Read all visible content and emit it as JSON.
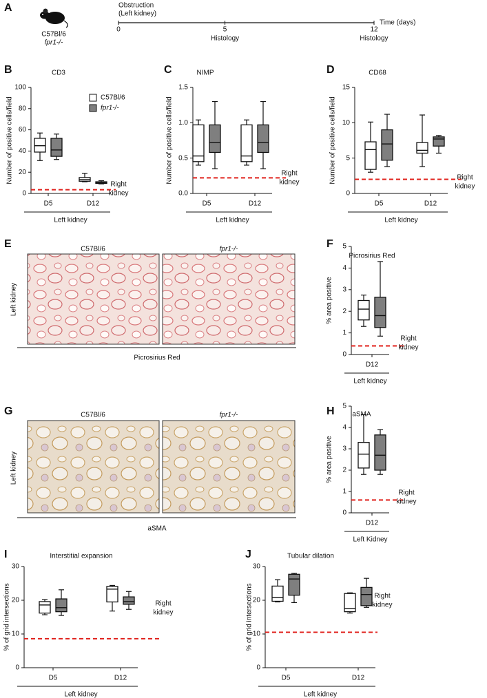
{
  "panel_letters": [
    "A",
    "B",
    "C",
    "D",
    "E",
    "F",
    "G",
    "H",
    "I",
    "J"
  ],
  "timeline": {
    "strain": "C57Bl/6",
    "genotype": "fpr1-/-",
    "event": "Obstruction",
    "event_detail": "(Left kidney)",
    "xlim": [
      0,
      12
    ],
    "ticks": [
      0,
      5,
      12
    ],
    "tick_notes": [
      null,
      "Histology",
      "Histology"
    ],
    "axis_label": "Time (days)"
  },
  "micrographs": [
    {
      "left_caption": "C57Bl/6",
      "right_caption": "fpr1-/-",
      "side_label": "Left kidney",
      "stain": "Picrosirius Red"
    },
    {
      "left_caption": "C57Bl/6",
      "right_caption": "fpr1-/-",
      "side_label": "Left kidney",
      "stain": "aSMA"
    }
  ],
  "chart_data": [
    {
      "type": "box",
      "title": "CD3",
      "y_label": "Number of positive cells/field",
      "categories": [
        "D5",
        "D12"
      ],
      "group_label": "Left kidney",
      "ylim": [
        0,
        100
      ],
      "yticks": [
        0,
        20,
        40,
        60,
        80,
        100
      ],
      "legend": true,
      "reference": {
        "value": 3.5,
        "color": "#e0201b",
        "label": [
          "Right",
          "kidney"
        ]
      },
      "series": [
        {
          "name": "C57Bl/6",
          "color": "#ffffff",
          "values": [
            {
              "min": 31,
              "q1": 39,
              "median": 45,
              "q3": 52,
              "max": 57
            },
            {
              "min": 11,
              "q1": 11.5,
              "median": 13,
              "q3": 15,
              "max": 19
            }
          ]
        },
        {
          "name": "fpr1-/-",
          "color": "#7f7f7f",
          "values": [
            {
              "min": 32,
              "q1": 35,
              "median": 41,
              "q3": 52,
              "max": 56
            },
            {
              "min": 9,
              "q1": 9.5,
              "median": 10,
              "q3": 11,
              "max": 12
            }
          ]
        }
      ]
    },
    {
      "type": "box",
      "title": "NIMP",
      "y_label": "Number of positive cells/field",
      "categories": [
        "D5",
        "D12"
      ],
      "group_label": "Left kidney",
      "ylim": [
        0,
        1.5
      ],
      "yticks": [
        {
          "value": 0,
          "label": "0.0"
        },
        0.5,
        {
          "value": 1,
          "label": "1.0"
        },
        1.5
      ],
      "legend": false,
      "reference": {
        "value": 0.22,
        "color": "#e0201b",
        "label": [
          "Right",
          "kidney"
        ]
      },
      "series": [
        {
          "color": "#ffffff",
          "values": [
            {
              "min": 0.4,
              "q1": 0.45,
              "median": 0.53,
              "q3": 0.97,
              "max": 1.04
            },
            {
              "min": 0.4,
              "q1": 0.45,
              "median": 0.53,
              "q3": 0.97,
              "max": 1.04
            }
          ]
        },
        {
          "color": "#7f7f7f",
          "values": [
            {
              "min": 0.35,
              "q1": 0.58,
              "median": 0.72,
              "q3": 0.97,
              "max": 1.3
            },
            {
              "min": 0.35,
              "q1": 0.58,
              "median": 0.72,
              "q3": 0.97,
              "max": 1.3
            }
          ]
        }
      ]
    },
    {
      "type": "box",
      "title": "CD68",
      "y_label": "Number of positive cells/field",
      "categories": [
        "D5",
        "D12"
      ],
      "group_label": "Left kidney",
      "ylim": [
        0,
        15
      ],
      "yticks": [
        0,
        5,
        10,
        15
      ],
      "legend": false,
      "reference": {
        "value": 2,
        "color": "#e0201b",
        "label": [
          "Right",
          "kidney"
        ]
      },
      "series": [
        {
          "color": "#ffffff",
          "values": [
            {
              "min": 3,
              "q1": 3.4,
              "median": 6.2,
              "q3": 7.3,
              "max": 10.1
            },
            {
              "min": 3.8,
              "q1": 5.7,
              "median": 6.1,
              "q3": 7.2,
              "max": 11.1
            }
          ]
        },
        {
          "color": "#7f7f7f",
          "values": [
            {
              "min": 3.8,
              "q1": 4.7,
              "median": 7,
              "q3": 9,
              "max": 11.2
            },
            {
              "min": 5.7,
              "q1": 6.7,
              "median": 7.7,
              "q3": 8,
              "max": 8.2
            }
          ]
        }
      ]
    },
    {
      "type": "box",
      "title": "Picrosirius Red",
      "y_label": "% area positive",
      "categories": [
        "D12"
      ],
      "group_label": "Left kidney",
      "ylim": [
        0,
        5
      ],
      "yticks": [
        0,
        1,
        2,
        3,
        4,
        5
      ],
      "legend": false,
      "reference": {
        "value": 0.4,
        "color": "#e0201b",
        "label": [
          "Right",
          "kidney"
        ]
      },
      "series": [
        {
          "color": "#ffffff",
          "values": [
            {
              "min": 1.3,
              "q1": 1.6,
              "median": 2.1,
              "q3": 2.5,
              "max": 2.75
            }
          ]
        },
        {
          "color": "#7f7f7f",
          "values": [
            {
              "min": 0.85,
              "q1": 1.25,
              "median": 1.8,
              "q3": 2.65,
              "max": 4.3
            }
          ]
        }
      ]
    },
    {
      "type": "box",
      "title": "aSMA",
      "y_label": "% area positive",
      "categories": [
        "D12"
      ],
      "group_label": "Left Kidney",
      "ylim": [
        0,
        5
      ],
      "yticks": [
        0,
        1,
        2,
        3,
        4,
        5
      ],
      "legend": false,
      "reference": {
        "value": 0.6,
        "color": "#e0201b",
        "label": [
          "Right",
          "kidney"
        ]
      },
      "series": [
        {
          "color": "#ffffff",
          "values": [
            {
              "min": 1.8,
              "q1": 2.1,
              "median": 2.75,
              "q3": 3.3,
              "max": 4.6
            }
          ]
        },
        {
          "color": "#7f7f7f",
          "values": [
            {
              "min": 1.8,
              "q1": 2,
              "median": 2.7,
              "q3": 3.65,
              "max": 3.9
            }
          ]
        }
      ]
    },
    {
      "type": "box",
      "title": "Interstitial expansion",
      "y_label": "% of grid intersections",
      "categories": [
        "D5",
        "D12"
      ],
      "group_label": "Left kidney",
      "ylim": [
        0,
        30
      ],
      "yticks": [
        0,
        10,
        20,
        30
      ],
      "legend": false,
      "reference": {
        "value": 8.6,
        "color": "#e0201b",
        "label": [
          "Right",
          "kidney"
        ]
      },
      "series": [
        {
          "color": "#ffffff",
          "values": [
            {
              "min": 15.7,
              "q1": 16.2,
              "median": 18.6,
              "q3": 19.6,
              "max": 20.2
            },
            {
              "min": 16.8,
              "q1": 19.5,
              "median": 23.3,
              "q3": 24.1,
              "max": 24.4
            }
          ]
        },
        {
          "color": "#7f7f7f",
          "values": [
            {
              "min": 15.5,
              "q1": 16.6,
              "median": 17.8,
              "q3": 20.4,
              "max": 23.1
            },
            {
              "min": 17.3,
              "q1": 18.8,
              "median": 19.6,
              "q3": 21,
              "max": 22.6
            }
          ]
        }
      ]
    },
    {
      "type": "box",
      "title": "Tubular dilation",
      "y_label": "% of grid intersections",
      "categories": [
        "D5",
        "D12"
      ],
      "group_label": "Left kidney",
      "ylim": [
        0,
        30
      ],
      "yticks": [
        0,
        10,
        20,
        30
      ],
      "legend": false,
      "reference": {
        "value": 10.5,
        "color": "#e0201b",
        "label": [
          "Right",
          "kidney"
        ]
      },
      "series": [
        {
          "color": "#ffffff",
          "values": [
            {
              "min": 19.5,
              "q1": 19.7,
              "median": 20.8,
              "q3": 24.2,
              "max": 26.1
            },
            {
              "min": 16.2,
              "q1": 16.6,
              "median": 17.5,
              "q3": 22,
              "max": 22.2
            }
          ]
        },
        {
          "color": "#7f7f7f",
          "values": [
            {
              "min": 19.3,
              "q1": 21.5,
              "median": 26.3,
              "q3": 27.7,
              "max": 28
            },
            {
              "min": 17.9,
              "q1": 18.4,
              "median": 21.7,
              "q3": 23.8,
              "max": 26.5
            }
          ]
        }
      ]
    }
  ]
}
